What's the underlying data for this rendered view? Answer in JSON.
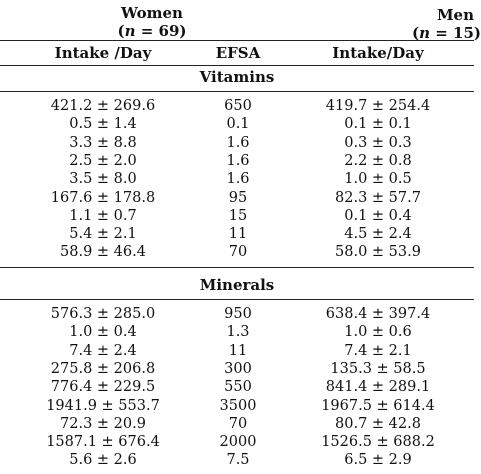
{
  "groups": {
    "women": {
      "label": "Women",
      "n_open": "(",
      "n_var": "n",
      "n_rest": " = 69)"
    },
    "men": {
      "label": "Men",
      "n_open": "(",
      "n_var": "n",
      "n_rest": " = 15)"
    }
  },
  "columns": [
    "Intake /Day",
    "EFSA",
    "Intake/Day"
  ],
  "sections": [
    {
      "title": "Vitamins",
      "rows": [
        [
          "421.2 ± 269.6",
          "650",
          "419.7 ± 254.4"
        ],
        [
          "0.5 ± 1.4",
          "0.1",
          "0.1 ± 0.1"
        ],
        [
          "3.3 ± 8.8",
          "1.6",
          "0.3 ± 0.3"
        ],
        [
          "2.5 ± 2.0",
          "1.6",
          "2.2 ± 0.8"
        ],
        [
          "3.5 ± 8.0",
          "1.6",
          "1.0 ± 0.5"
        ],
        [
          "167.6 ± 178.8",
          "95",
          "82.3 ± 57.7"
        ],
        [
          "1.1 ± 0.7",
          "15",
          "0.1 ± 0.4"
        ],
        [
          "5.4 ± 2.1",
          "11",
          "4.5 ± 2.4"
        ],
        [
          "58.9 ± 46.4",
          "70",
          "58.0 ± 53.9"
        ]
      ]
    },
    {
      "title": "Minerals",
      "rows": [
        [
          "576.3 ± 285.0",
          "950",
          "638.4 ± 397.4"
        ],
        [
          "1.0 ± 0.4",
          "1.3",
          "1.0 ± 0.6"
        ],
        [
          "7.4 ± 2.4",
          "11",
          "7.4 ± 2.1"
        ],
        [
          "275.8 ± 206.8",
          "300",
          "135.3 ± 58.5"
        ],
        [
          "776.4 ± 229.5",
          "550",
          "841.4 ± 289.1"
        ],
        [
          "1941.9 ± 553.7",
          "3500",
          "1967.5 ± 614.4"
        ],
        [
          "72.3 ± 20.9",
          "70",
          "80.7 ± 42.8"
        ],
        [
          "1587.1 ± 676.4",
          "2000",
          "1526.5 ± 688.2"
        ],
        [
          "5.6 ± 2.6",
          "7.5",
          "6.5 ± 2.9"
        ]
      ]
    }
  ]
}
